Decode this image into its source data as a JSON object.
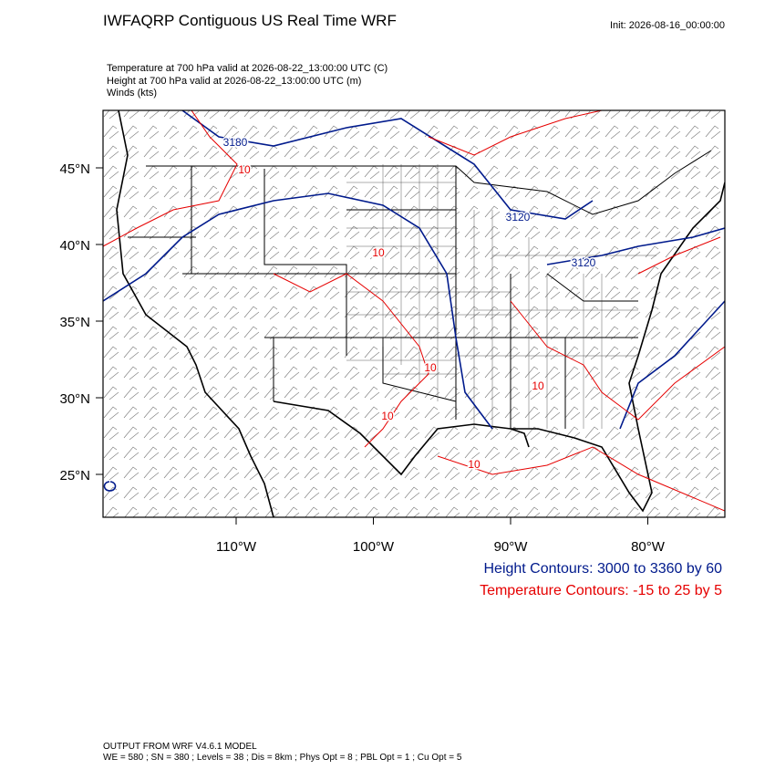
{
  "header": {
    "title": "IWFAQRP Contiguous US Real Time WRF",
    "init": "Init: 2026-08-16_00:00:00",
    "fields": [
      "Temperature at 700 hPa valid at 2026-08-22_13:00:00 UTC   (C)",
      "Height at 700 hPa valid at 2026-08-22_13:00:00 UTC   (m)",
      "Winds   (kts)"
    ]
  },
  "map": {
    "lat_ticks": [
      {
        "value": 45,
        "label": "45°N"
      },
      {
        "value": 40,
        "label": "40°N"
      },
      {
        "value": 35,
        "label": "35°N"
      },
      {
        "value": 30,
        "label": "30°N"
      },
      {
        "value": 25,
        "label": "25°N"
      }
    ],
    "lon_ticks": [
      {
        "value": -110,
        "label": "110°W"
      },
      {
        "value": -100,
        "label": "100°W"
      },
      {
        "value": -90,
        "label": "90°W"
      },
      {
        "value": -80,
        "label": "80°W"
      }
    ],
    "height_contour_labels": [
      "3180",
      "3120",
      "3120"
    ],
    "temperature_contour_labels": [
      "10",
      "10",
      "10",
      "10",
      "10",
      "10"
    ]
  },
  "legend": {
    "height": "Height Contours: 3000 to 3360 by 60",
    "temperature": "Temperature Contours: -15 to 25 by 5"
  },
  "footer": {
    "model": "OUTPUT FROM WRF V4.6.1 MODEL",
    "config": "WE = 580 ; SN = 380 ; Levels = 38 ; Dis = 8km ; Phys Opt = 8 ; PBL Opt = 1 ; Cu Opt = 5"
  }
}
